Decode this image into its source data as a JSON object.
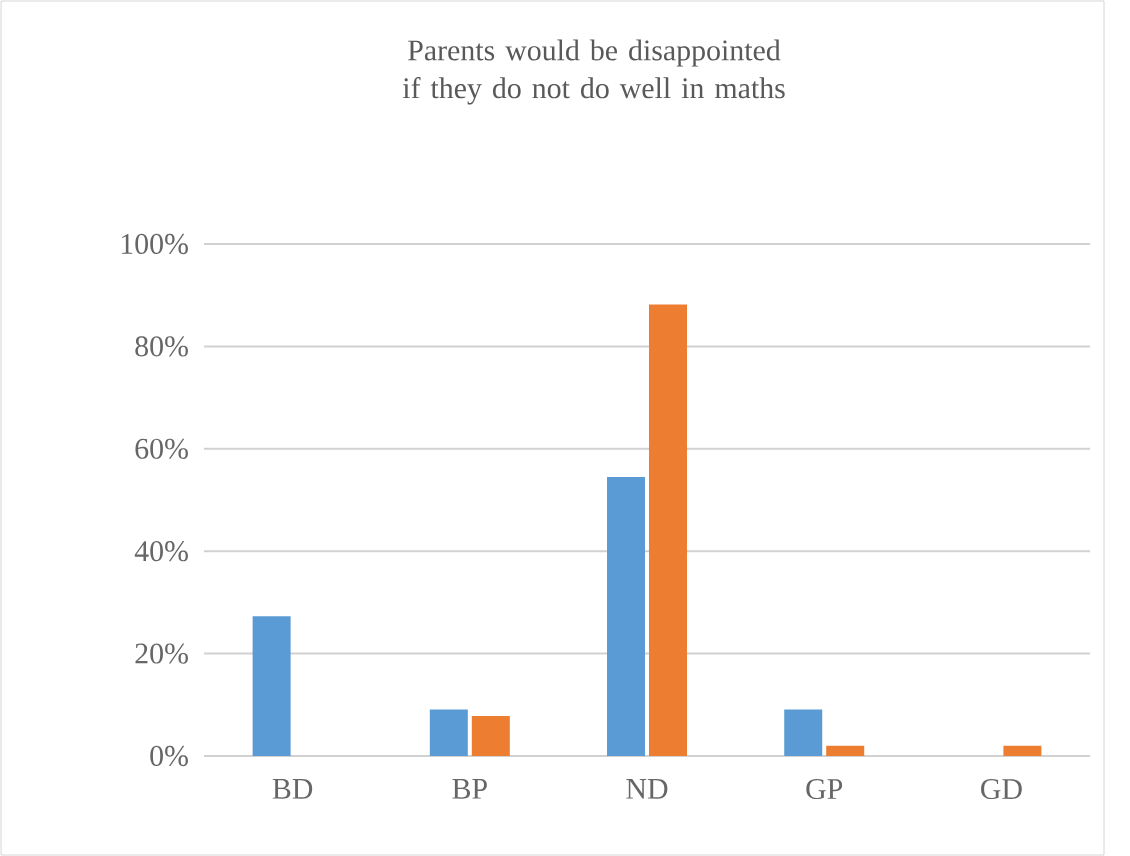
{
  "chart_data": {
    "type": "bar",
    "title": "Parents would be disappointed if they do not do well in maths",
    "categories": [
      "BD",
      "BP",
      "ND",
      "GP",
      "GD"
    ],
    "series": [
      {
        "color": "#5b9bd5",
        "values": [
          27.3,
          9.1,
          54.5,
          9.1,
          0
        ]
      },
      {
        "color": "#ed7d31",
        "values": [
          0,
          7.8,
          88.2,
          2.0,
          2.0
        ]
      }
    ],
    "ylim": [
      0,
      100
    ],
    "yticks": [
      {
        "value": 0,
        "label": "0%"
      },
      {
        "value": 20,
        "label": "20%"
      },
      {
        "value": 40,
        "label": "40%"
      },
      {
        "value": 60,
        "label": "60%"
      },
      {
        "value": 80,
        "label": "80%"
      },
      {
        "value": 100,
        "label": "100%"
      }
    ],
    "grid": "y"
  }
}
